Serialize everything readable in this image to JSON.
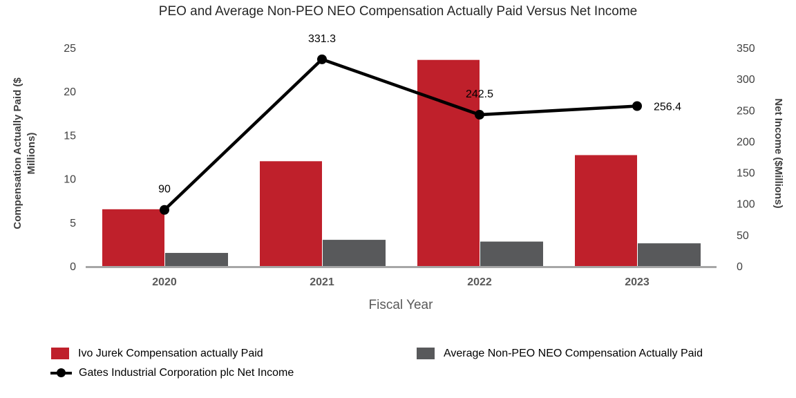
{
  "chart": {
    "title": "PEO and Average Non-PEO NEO Compensation Actually Paid Versus Net Income"
  },
  "chart_data": {
    "type": "bar+line",
    "title": "PEO and Average Non-PEO NEO Compensation Actually Paid Versus Net Income",
    "categories": [
      "2020",
      "2021",
      "2022",
      "2023"
    ],
    "series": [
      {
        "key": "peo",
        "name": "Ivo Jurek Compensation actually Paid",
        "type": "bar",
        "axis": "left",
        "color": "#BF202B",
        "values": [
          6.5,
          12.0,
          23.6,
          12.7
        ]
      },
      {
        "key": "nonpeo",
        "name": "Average Non-PEO NEO Compensation Actually Paid",
        "type": "bar",
        "axis": "left",
        "color": "#58595B",
        "values": [
          1.5,
          3.0,
          2.8,
          2.6
        ]
      },
      {
        "key": "net-income",
        "name": "Gates Industrial Corporation plc Net Income",
        "type": "line",
        "axis": "right",
        "color": "#000000",
        "values": [
          90,
          331.3,
          242.5,
          256.4
        ],
        "labels": [
          "90",
          "331.3",
          "242.5",
          "256.4"
        ],
        "label_positions": [
          "top",
          "top",
          "top",
          "right"
        ]
      }
    ],
    "xlabel": "Fiscal Year",
    "left_axis": {
      "label": "Compensation Actually Paid ($ Millions)",
      "label_lines": [
        "Compensation Actually Paid ($",
        "Millions)"
      ],
      "ticks": [
        0,
        5,
        10,
        15,
        20,
        25
      ],
      "range": [
        0,
        25
      ]
    },
    "right_axis": {
      "label": "Net Income ($Millions)",
      "ticks": [
        0,
        50,
        100,
        150,
        200,
        250,
        300,
        350
      ],
      "range": [
        0,
        350
      ]
    },
    "grid": false,
    "legend_position": "bottom",
    "style": {
      "axis_line_color": "#A6A6A6",
      "tick_color": "#404040",
      "xtick_color": "#595959",
      "axis_title_color": "#3F3F3F",
      "data_label_color": "#000000"
    }
  },
  "legend": {
    "items": [
      {
        "label": "Ivo Jurek Compensation actually Paid",
        "marker": "square",
        "color": "#BF202B"
      },
      {
        "label": "Average Non-PEO NEO Compensation Actually Paid",
        "marker": "square",
        "color": "#58595B"
      },
      {
        "label": "Gates Industrial Corporation plc Net Income",
        "marker": "line-dot",
        "color": "#000000"
      }
    ]
  }
}
